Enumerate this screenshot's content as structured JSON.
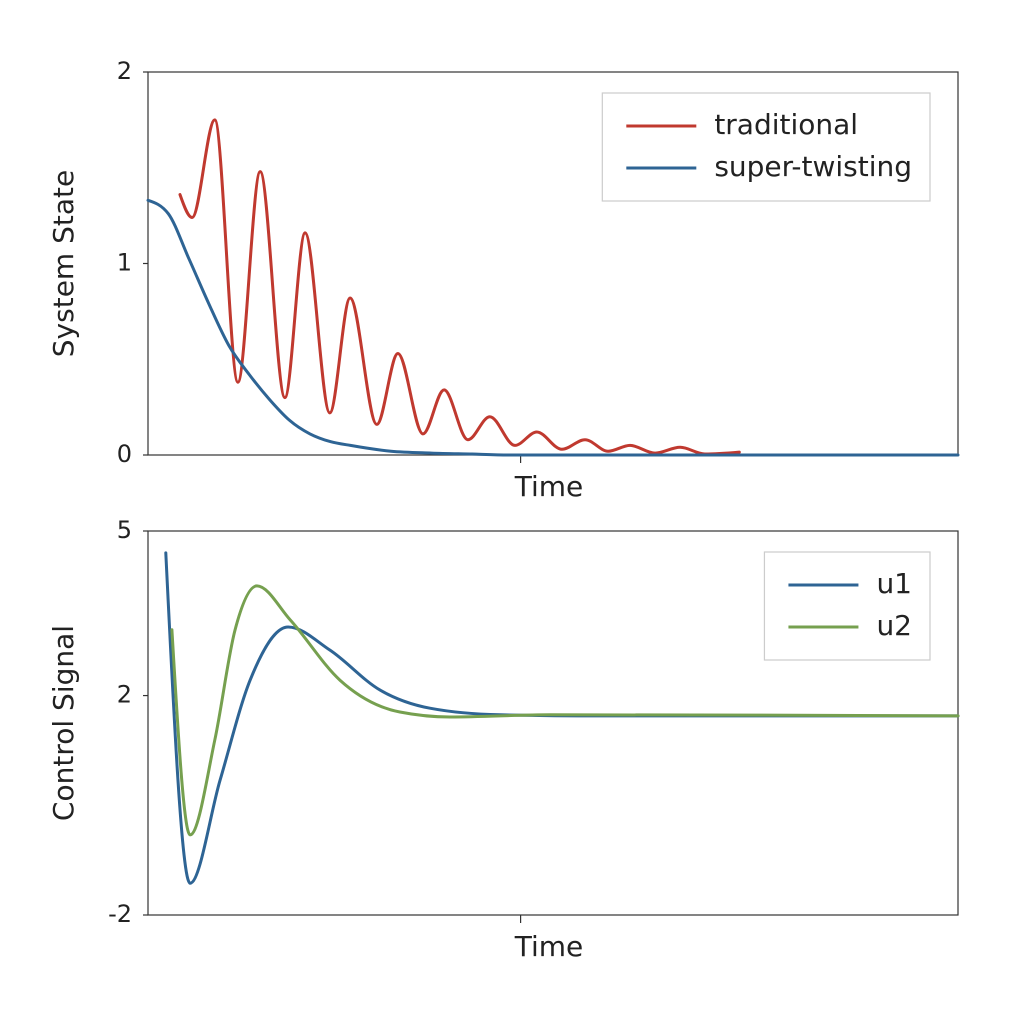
{
  "chart_data": [
    {
      "type": "line",
      "xlabel": "Time",
      "ylabel": "System State",
      "xlim": [
        0,
        20
      ],
      "xticks": [
        9.2
      ],
      "ylim": [
        0,
        2
      ],
      "yticks": [
        0,
        1,
        2
      ],
      "legend": "upper right",
      "series": [
        {
          "name": "traditional",
          "color": "#c0392f",
          "x": [
            0.79,
            1.09,
            1.65,
            2.22,
            2.77,
            3.38,
            3.88,
            4.49,
            4.99,
            5.65,
            6.17,
            6.79,
            7.31,
            7.9,
            8.44,
            9.06,
            9.6,
            10.22,
            10.79,
            11.36,
            11.9,
            12.52,
            13.14,
            13.75,
            14.6
          ],
          "values": [
            1.36,
            1.24,
            1.75,
            0.38,
            1.48,
            0.3,
            1.16,
            0.22,
            0.82,
            0.16,
            0.53,
            0.11,
            0.34,
            0.08,
            0.2,
            0.05,
            0.12,
            0.03,
            0.08,
            0.02,
            0.05,
            0.01,
            0.04,
            0.005,
            0.015
          ]
        },
        {
          "name": "super-twisting",
          "color": "#2e6494",
          "x": [
            0,
            0.5,
            1,
            1.5,
            2,
            2.5,
            3,
            3.5,
            4,
            4.5,
            5,
            6,
            7,
            8,
            9,
            10,
            12,
            14,
            16,
            18,
            20
          ],
          "values": [
            1.33,
            1.26,
            1.03,
            0.79,
            0.57,
            0.42,
            0.29,
            0.18,
            0.11,
            0.07,
            0.05,
            0.02,
            0.01,
            0.005,
            0,
            0,
            0,
            0,
            0,
            0,
            0
          ]
        }
      ]
    },
    {
      "type": "line",
      "xlabel": "Time",
      "ylabel": "Control Signal",
      "xlim": [
        0,
        20
      ],
      "xticks": [
        9.2
      ],
      "ylim": [
        -2,
        5
      ],
      "yticks": [
        -2,
        2,
        5
      ],
      "legend": "upper right",
      "series": [
        {
          "name": "u1",
          "color": "#2e6494",
          "x": [
            0.44,
            1.04,
            1.78,
            2.52,
            3.46,
            4.49,
            5.73,
            6.96,
            8.69,
            11.16,
            20
          ],
          "values": [
            4.6,
            -1.42,
            0.46,
            2.28,
            3.25,
            2.83,
            2.1,
            1.77,
            1.65,
            1.63,
            1.63
          ]
        },
        {
          "name": "u2",
          "color": "#76a04f",
          "x": [
            0.59,
            1.04,
            1.65,
            2.15,
            2.69,
            3.51,
            4.74,
            6.22,
            7.46,
            9.93,
            20
          ],
          "values": [
            3.2,
            -0.54,
            1.19,
            3.2,
            4.0,
            3.38,
            2.28,
            1.7,
            1.61,
            1.65,
            1.63
          ]
        }
      ]
    }
  ]
}
